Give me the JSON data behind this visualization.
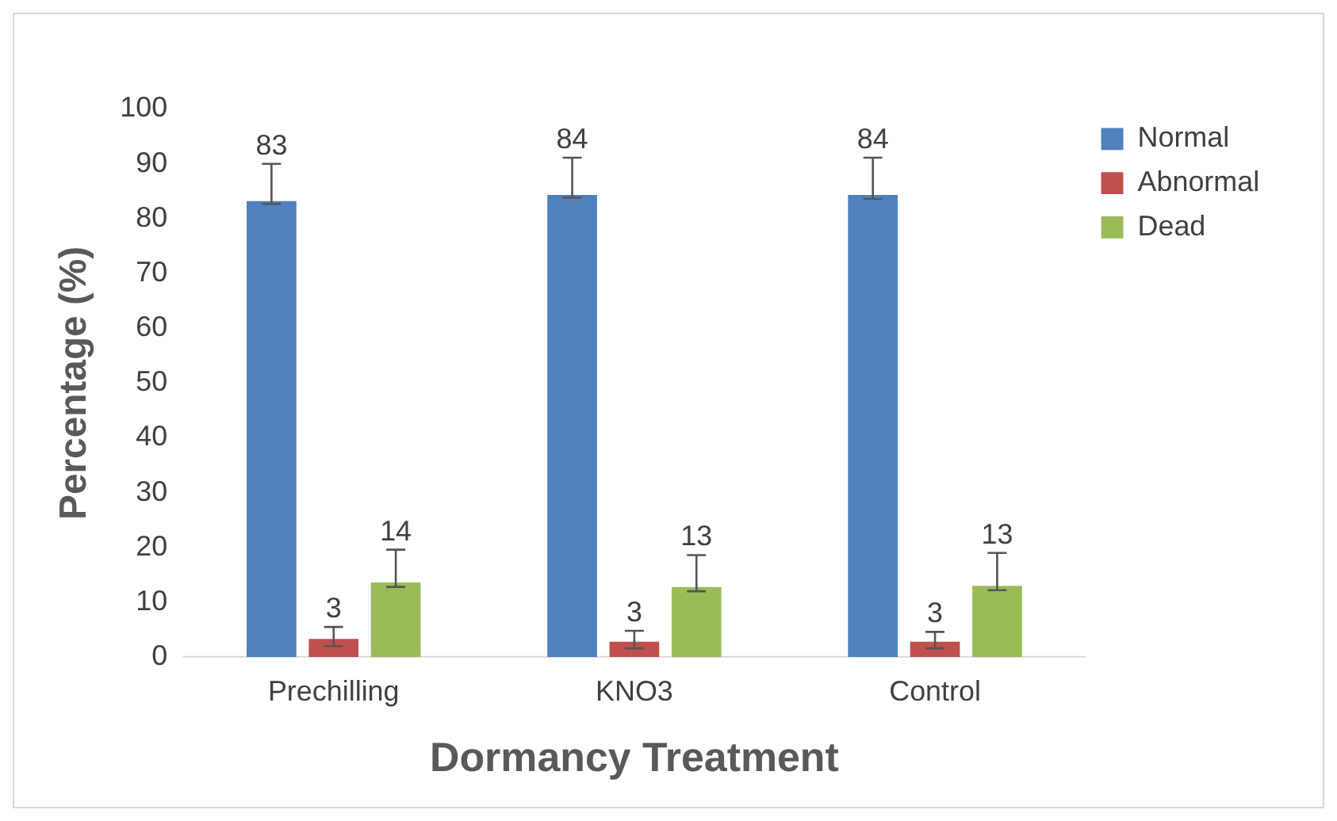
{
  "chart_data": {
    "type": "bar",
    "xlabel": "Dormancy Treatment",
    "ylabel": "Percentage (%)",
    "categories": [
      "Prechilling",
      "KNO3",
      "Control"
    ],
    "series": [
      {
        "name": "Normal",
        "color": "#4f81bd",
        "values": [
          83.2,
          84.3,
          84.3
        ],
        "errors": [
          [
            82.7,
            90.0
          ],
          [
            83.8,
            91.1
          ],
          [
            83.6,
            91.1
          ]
        ],
        "value_labels": [
          "83",
          "84",
          "84"
        ]
      },
      {
        "name": "Abnormal",
        "color": "#c0504d",
        "values": [
          3.3,
          2.8,
          2.8
        ],
        "errors": [
          [
            2.0,
            5.5
          ],
          [
            1.6,
            4.8
          ],
          [
            1.6,
            4.6
          ]
        ],
        "value_labels": [
          "3",
          "3",
          "3"
        ]
      },
      {
        "name": "Dead",
        "color": "#9bbb59",
        "values": [
          13.6,
          12.8,
          13.0
        ],
        "errors": [
          [
            12.8,
            19.6
          ],
          [
            12.0,
            18.6
          ],
          [
            12.2,
            19.0
          ]
        ],
        "value_labels": [
          "14",
          "13",
          "13"
        ]
      }
    ],
    "ylim": [
      0,
      100
    ],
    "yticks": [
      0,
      10,
      20,
      30,
      40,
      50,
      60,
      70,
      80,
      90,
      100
    ],
    "grid": false,
    "legend": "right"
  }
}
